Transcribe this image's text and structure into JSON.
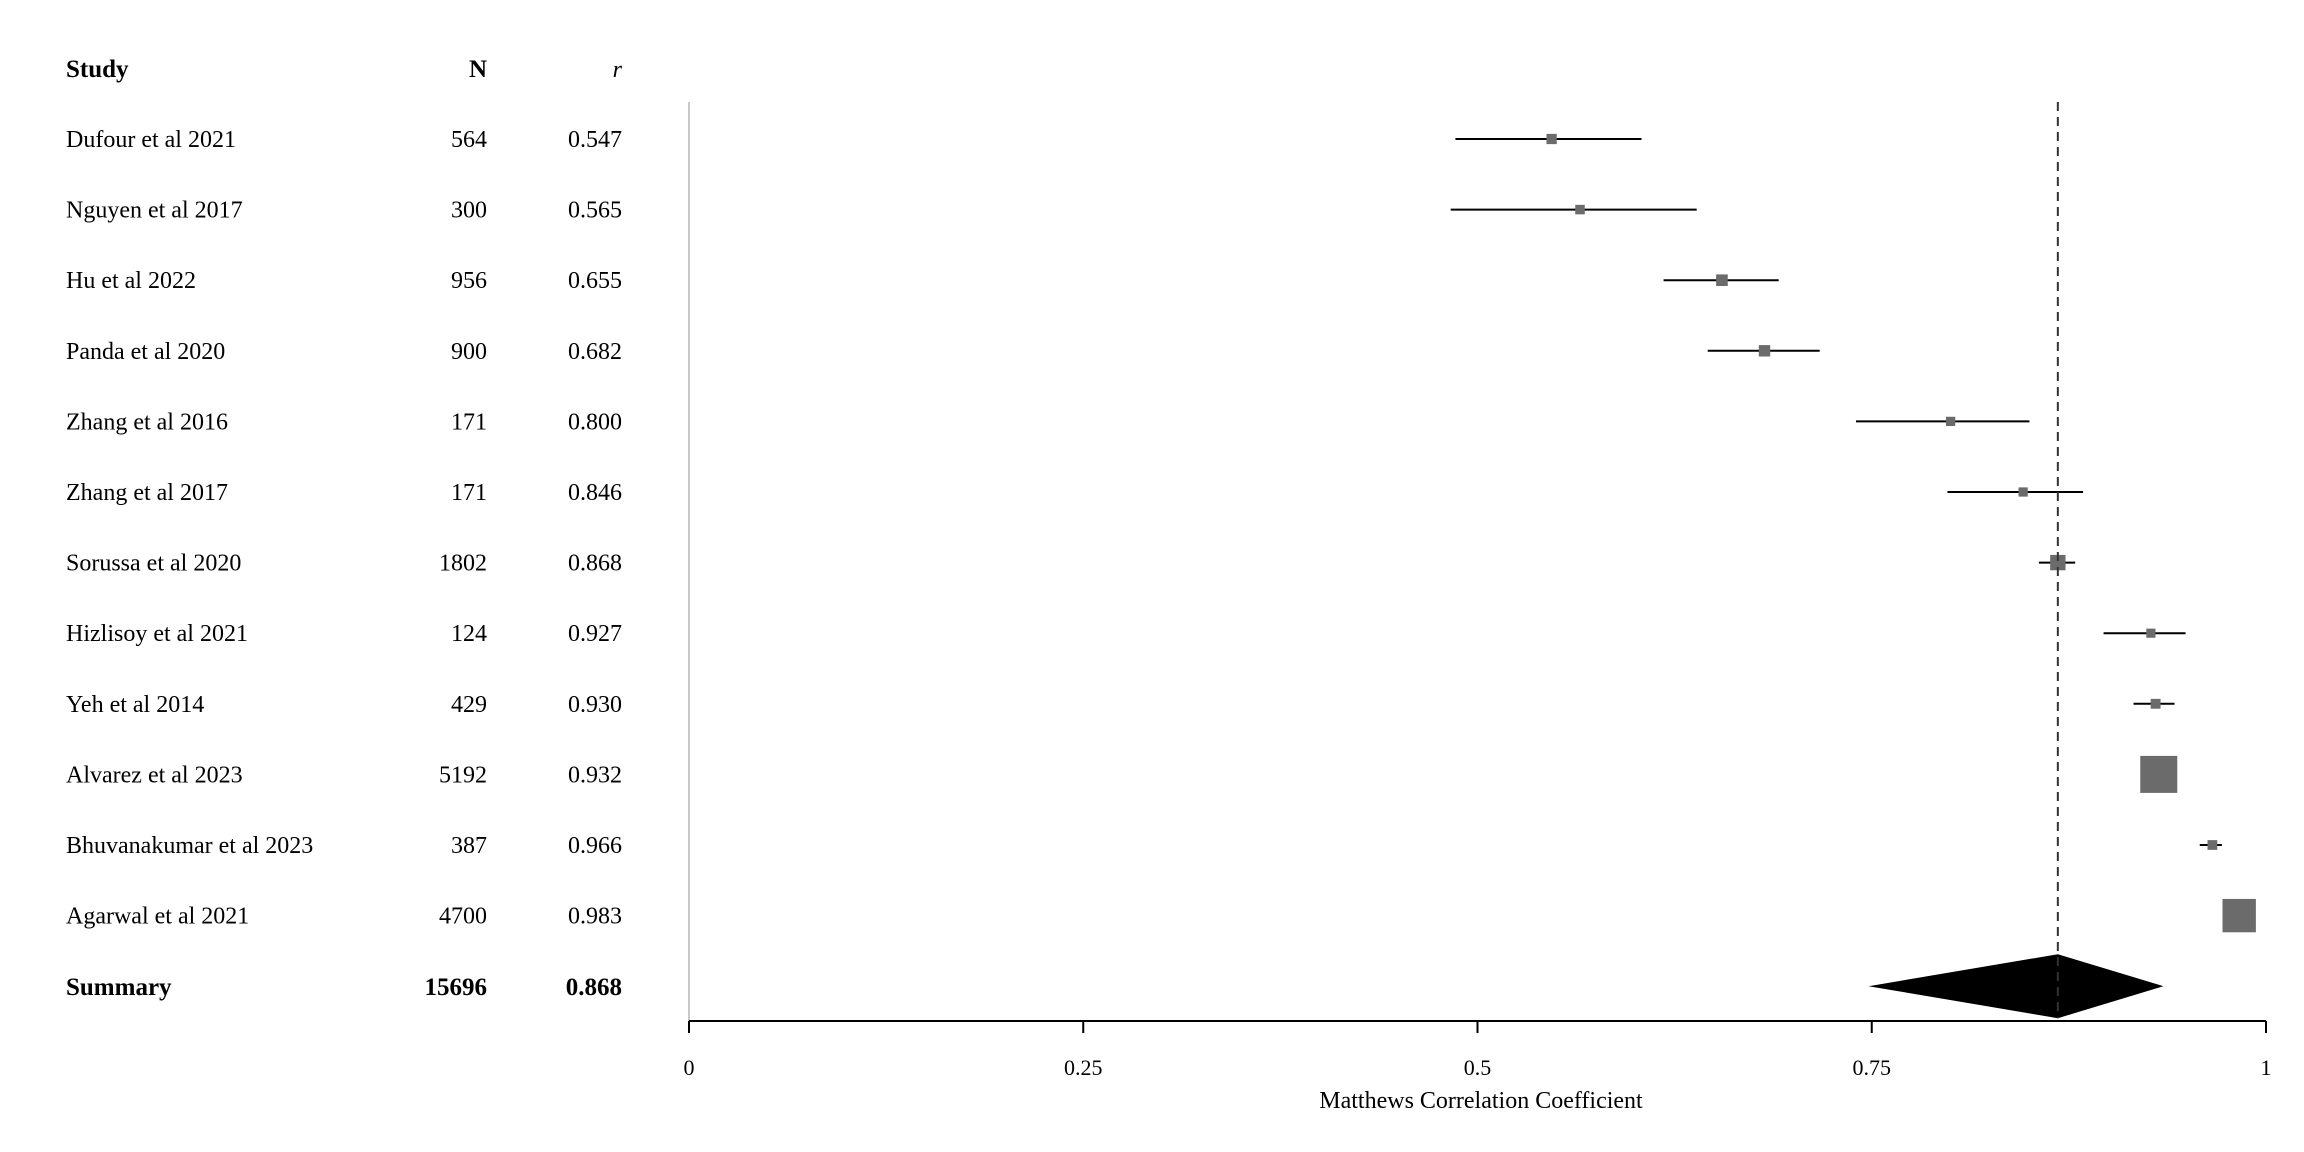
{
  "chart_data": {
    "type": "forest",
    "columns": {
      "study": "Study",
      "n": "N",
      "r": "r"
    },
    "studies": [
      {
        "name": "Dufour et al 2021",
        "n": "564",
        "r": "0.547",
        "value": 0.547,
        "ci": [
          0.486,
          0.604
        ]
      },
      {
        "name": "Nguyen et al 2017",
        "n": "300",
        "r": "0.565",
        "value": 0.565,
        "ci": [
          0.483,
          0.639
        ]
      },
      {
        "name": "Hu et al 2022",
        "n": "956",
        "r": "0.655",
        "value": 0.655,
        "ci": [
          0.618,
          0.691
        ]
      },
      {
        "name": "Panda et al 2020",
        "n": "900",
        "r": "0.682",
        "value": 0.682,
        "ci": [
          0.646,
          0.717
        ]
      },
      {
        "name": "Zhang et al 2016",
        "n": "171",
        "r": "0.800",
        "value": 0.8,
        "ci": [
          0.74,
          0.85
        ]
      },
      {
        "name": "Zhang et al 2017",
        "n": "171",
        "r": "0.846",
        "value": 0.846,
        "ci": [
          0.798,
          0.884
        ]
      },
      {
        "name": "Sorussa et al 2020",
        "n": "1802",
        "r": "0.868",
        "value": 0.868,
        "ci": [
          0.856,
          0.879
        ]
      },
      {
        "name": "Hizlisoy et al 2021",
        "n": "124",
        "r": "0.927",
        "value": 0.927,
        "ci": [
          0.897,
          0.949
        ]
      },
      {
        "name": "Yeh et al 2014",
        "n": "429",
        "r": "0.930",
        "value": 0.93,
        "ci": [
          0.916,
          0.942
        ]
      },
      {
        "name": "Alvarez et al 2023",
        "n": "5192",
        "r": "0.932",
        "value": 0.932,
        "ci": [
          0.928,
          0.936
        ]
      },
      {
        "name": "Bhuvanakumar et al 2023",
        "n": "387",
        "r": "0.966",
        "value": 0.966,
        "ci": [
          0.958,
          0.972
        ]
      },
      {
        "name": "Agarwal et al 2021",
        "n": "4700",
        "r": "0.983",
        "value": 0.983,
        "ci": [
          0.982,
          0.984
        ]
      }
    ],
    "summary": {
      "name": "Summary",
      "n": "15696",
      "r": "0.868",
      "value": 0.868,
      "ci": [
        0.748,
        0.935
      ]
    },
    "reference_line": 0.868,
    "xlim": [
      0,
      1
    ],
    "xticks": [
      "0",
      "0.25",
      "0.5",
      "0.75",
      "1"
    ],
    "xlabel": "Matthews Correlation Coefficient",
    "colors": {
      "marker": "#6b6b6b",
      "line": "#000000",
      "summary": "#000000"
    }
  }
}
